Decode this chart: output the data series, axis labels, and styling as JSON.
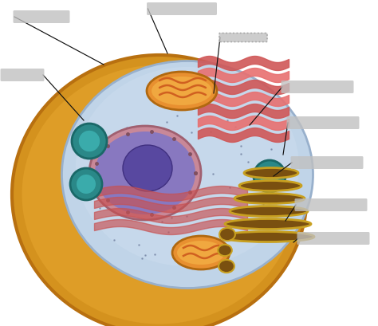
{
  "bg_color": "#ffffff",
  "cell_outer_color": "#D4921E",
  "cell_inner_color": "#E8A830",
  "cytoplasm_color": "#B8CCE0",
  "nucleus_envelope_color": "#C88898",
  "nucleus_color": "#9080C0",
  "nucleolus_color": "#5848A0",
  "er_color": "#D05858",
  "er_color2": "#E87070",
  "mito_outer": "#E89030",
  "mito_inner": "#D06020",
  "vacuole_outer": "#2A8888",
  "vacuole_inner": "#3AABAB",
  "golgi_outer": "#C8A020",
  "golgi_inner": "#7A5010",
  "label_color": "#C0C0C0",
  "dot_color": "#7080A0",
  "line_color": "#111111",
  "figsize": [
    4.74,
    4.1
  ],
  "dpi": 100
}
